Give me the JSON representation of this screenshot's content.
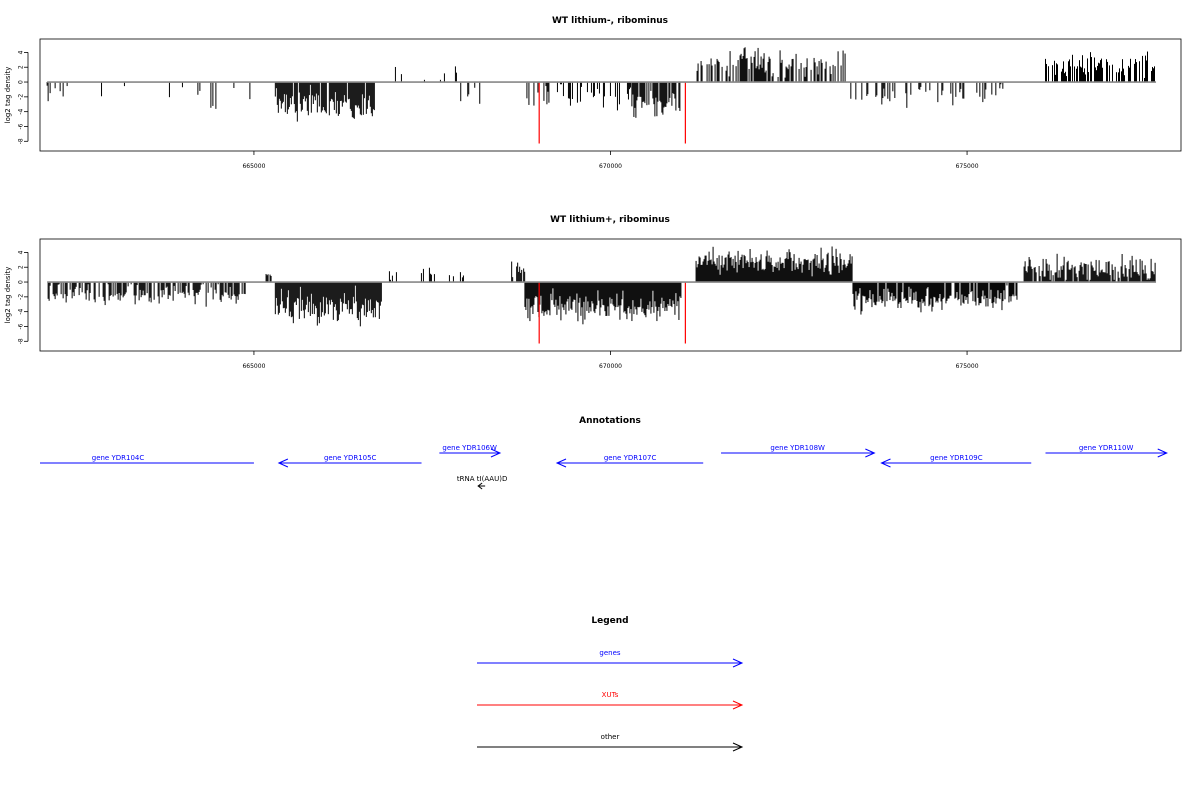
{
  "chart_data": [
    {
      "type": "bar",
      "title": "WT lithium-, ribominus",
      "ylabel": "log2 tag density",
      "xlabel": "",
      "xlim": [
        662000,
        678000
      ],
      "ylim": [
        -8.5,
        5
      ],
      "x_ticks": [
        "665000",
        "670000",
        "675000"
      ],
      "y_ticks": [
        "-8",
        "-6",
        "-4",
        "-2",
        "0",
        "2",
        "4"
      ],
      "grid": false,
      "baseline": 0,
      "highlight_lines": [
        {
          "x": 669000,
          "value": -8.3,
          "color": "#ff0000"
        },
        {
          "x": 671050,
          "value": -8.3,
          "color": "#ff0000"
        }
      ],
      "segments": [
        {
          "start": 662100,
          "end": 662400,
          "density": 0.2,
          "mean": -2.0,
          "spread": 1.0
        },
        {
          "start": 662400,
          "end": 663100,
          "density": 0.05,
          "mean": -1.5,
          "spread": 1.0
        },
        {
          "start": 663100,
          "end": 664200,
          "density": 0.04,
          "mean": -1.5,
          "spread": 1.2
        },
        {
          "start": 664200,
          "end": 665000,
          "density": 0.1,
          "mean": -2.0,
          "spread": 1.5
        },
        {
          "start": 665300,
          "end": 666700,
          "density": 0.9,
          "mean": -3.0,
          "spread": 1.6
        },
        {
          "start": 666900,
          "end": 667900,
          "density": 0.06,
          "mean": 2.0,
          "spread": 1.2
        },
        {
          "start": 667900,
          "end": 668200,
          "density": 0.05,
          "mean": -1.5,
          "spread": 1.0
        },
        {
          "start": 668800,
          "end": 669200,
          "density": 0.4,
          "mean": -2.0,
          "spread": 1.0
        },
        {
          "start": 669200,
          "end": 670300,
          "density": 0.5,
          "mean": -2.0,
          "spread": 1.2
        },
        {
          "start": 670300,
          "end": 671000,
          "density": 0.75,
          "mean": -2.8,
          "spread": 1.4
        },
        {
          "start": 671200,
          "end": 673300,
          "density": 0.65,
          "mean": 2.5,
          "spread": 1.3
        },
        {
          "start": 673300,
          "end": 675600,
          "density": 0.3,
          "mean": -1.8,
          "spread": 1.0
        },
        {
          "start": 676100,
          "end": 677650,
          "density": 0.55,
          "mean": 2.2,
          "spread": 1.1
        }
      ]
    },
    {
      "type": "bar",
      "title": "WT lithium+, ribominus",
      "ylabel": "log2 tag density",
      "xlabel": "",
      "xlim": [
        662000,
        678000
      ],
      "ylim": [
        -8.5,
        5
      ],
      "x_ticks": [
        "665000",
        "670000",
        "675000"
      ],
      "y_ticks": [
        "-8",
        "-6",
        "-4",
        "-2",
        "0",
        "2",
        "4"
      ],
      "grid": false,
      "baseline": 0,
      "highlight_lines": [
        {
          "x": 669000,
          "value": -8.3,
          "color": "#ff0000"
        },
        {
          "x": 671050,
          "value": -8.3,
          "color": "#ff0000"
        }
      ],
      "segments": [
        {
          "start": 662100,
          "end": 664900,
          "density": 0.6,
          "mean": -1.7,
          "spread": 1.0
        },
        {
          "start": 665100,
          "end": 665250,
          "density": 0.5,
          "mean": 0.8,
          "spread": 0.3
        },
        {
          "start": 665300,
          "end": 666800,
          "density": 1.0,
          "mean": -3.4,
          "spread": 1.6
        },
        {
          "start": 666900,
          "end": 668200,
          "density": 0.12,
          "mean": 1.2,
          "spread": 1.0
        },
        {
          "start": 668600,
          "end": 668800,
          "density": 0.5,
          "mean": 1.5,
          "spread": 1.0
        },
        {
          "start": 668800,
          "end": 671000,
          "density": 1.0,
          "mean": -3.4,
          "spread": 1.6
        },
        {
          "start": 671200,
          "end": 673400,
          "density": 1.0,
          "mean": 2.8,
          "spread": 1.2
        },
        {
          "start": 673400,
          "end": 675700,
          "density": 0.9,
          "mean": -2.4,
          "spread": 1.1
        },
        {
          "start": 675800,
          "end": 677650,
          "density": 0.9,
          "mean": 1.8,
          "spread": 1.2
        }
      ]
    }
  ],
  "annotations_panel": {
    "title": "Annotations",
    "features": [
      {
        "label": "gene YDR104C",
        "start": 662000,
        "end": 665000,
        "strand": "-",
        "row": 0,
        "color": "#0000ff"
      },
      {
        "label": "gene YDR105C",
        "start": 665350,
        "end": 667350,
        "strand": "-",
        "row": 0,
        "color": "#0000ff"
      },
      {
        "label": "gene YDR106W",
        "start": 667600,
        "end": 668450,
        "strand": "+",
        "row": 1,
        "color": "#0000ff"
      },
      {
        "label": "gene YDR107C",
        "start": 669250,
        "end": 671300,
        "strand": "-",
        "row": 0,
        "color": "#0000ff"
      },
      {
        "label": "gene YDR108W",
        "start": 671550,
        "end": 673700,
        "strand": "+",
        "row": 1,
        "color": "#0000ff"
      },
      {
        "label": "gene YDR109C",
        "start": 673800,
        "end": 675900,
        "strand": "-",
        "row": 0,
        "color": "#0000ff"
      },
      {
        "label": "gene YDR110W",
        "start": 676100,
        "end": 677800,
        "strand": "+",
        "row": 1,
        "color": "#0000ff"
      },
      {
        "label": "tRNA tI(AAU)D",
        "start": 668150,
        "end": 668250,
        "strand": "-",
        "row": 2,
        "color": "#000000"
      }
    ]
  },
  "legend_panel": {
    "title": "Legend",
    "items": [
      {
        "label": "genes",
        "color": "#0000ff"
      },
      {
        "label": "XUTs",
        "color": "#ff0000"
      },
      {
        "label": "other",
        "color": "#000000"
      }
    ]
  }
}
